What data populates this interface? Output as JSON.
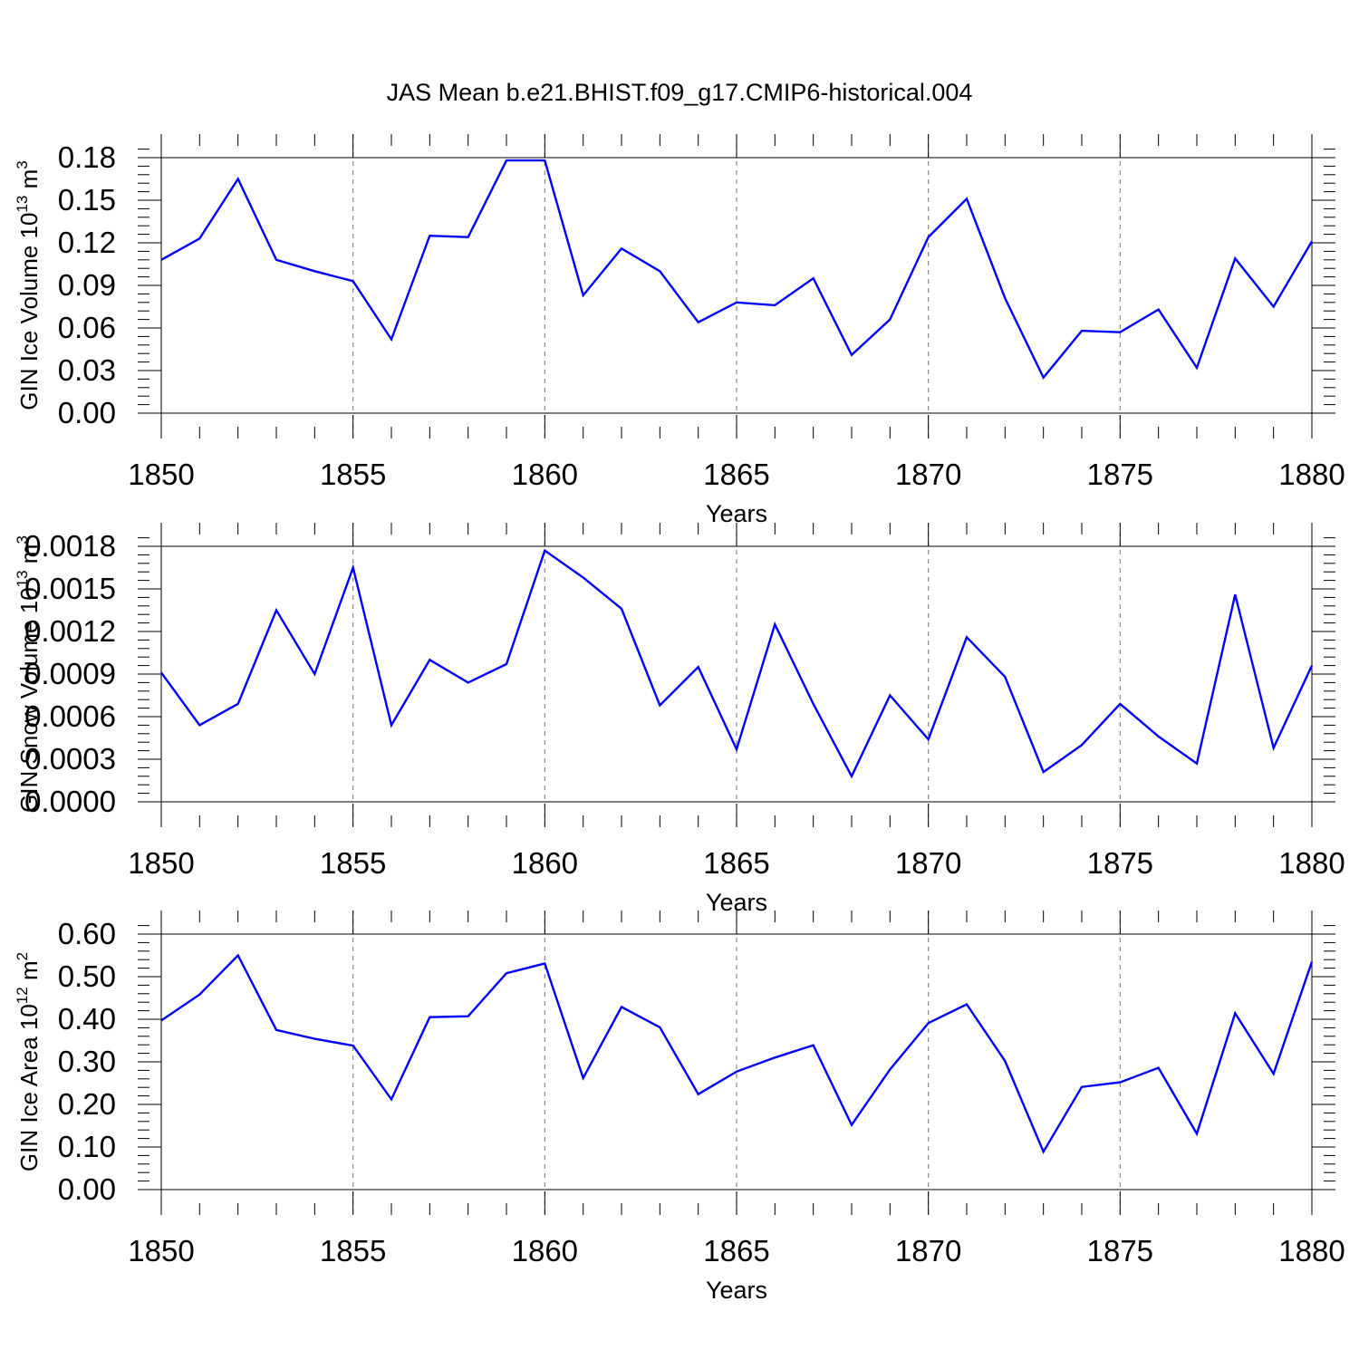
{
  "title": "JAS Mean b.e21.BHIST.f09_g17.CMIP6-historical.004",
  "colors": {
    "series": "#0000ff",
    "axis": "#000000",
    "grid": "#888888"
  },
  "chart_data": [
    {
      "type": "line",
      "ylabel_main": "GIN Ice Volume 10",
      "ylabel_exp": "13",
      "ylabel_unit": " m",
      "ylabel_unit_exp": "3",
      "xlabel": "Years",
      "xlim": [
        1850,
        1880
      ],
      "ylim": [
        0,
        0.18
      ],
      "yticks": [
        "0.00",
        "0.03",
        "0.06",
        "0.09",
        "0.12",
        "0.15",
        "0.18"
      ],
      "xticks": [
        "1850",
        "1855",
        "1860",
        "1865",
        "1870",
        "1875",
        "1880"
      ],
      "grid": "vertical-dashed",
      "x": [
        1850,
        1851,
        1852,
        1853,
        1854,
        1855,
        1856,
        1857,
        1858,
        1859,
        1860,
        1861,
        1862,
        1863,
        1864,
        1865,
        1866,
        1867,
        1868,
        1869,
        1870,
        1871,
        1872,
        1873,
        1874,
        1875,
        1876,
        1877,
        1878,
        1879,
        1880
      ],
      "values": [
        0.108,
        0.123,
        0.165,
        0.108,
        0.1,
        0.093,
        0.052,
        0.125,
        0.124,
        0.178,
        0.178,
        0.083,
        0.116,
        0.1,
        0.064,
        0.078,
        0.076,
        0.095,
        0.041,
        0.066,
        0.124,
        0.151,
        0.081,
        0.025,
        0.058,
        0.057,
        0.073,
        0.032,
        0.109,
        0.075,
        0.121
      ]
    },
    {
      "type": "line",
      "ylabel_main": "GIN Snow Volume 10",
      "ylabel_exp": "13",
      "ylabel_unit": " m",
      "ylabel_unit_exp": "3",
      "xlabel": "Years",
      "xlim": [
        1850,
        1880
      ],
      "ylim": [
        0,
        0.0018
      ],
      "yticks": [
        "0.0000",
        "0.0003",
        "0.0006",
        "0.0009",
        "0.0012",
        "0.0015",
        "0.0018"
      ],
      "xticks": [
        "1850",
        "1855",
        "1860",
        "1865",
        "1870",
        "1875",
        "1880"
      ],
      "grid": "vertical-dashed",
      "x": [
        1850,
        1851,
        1852,
        1853,
        1854,
        1855,
        1856,
        1857,
        1858,
        1859,
        1860,
        1861,
        1862,
        1863,
        1864,
        1865,
        1866,
        1867,
        1868,
        1869,
        1870,
        1871,
        1872,
        1873,
        1874,
        1875,
        1876,
        1877,
        1878,
        1879,
        1880
      ],
      "values": [
        0.00091,
        0.00054,
        0.00069,
        0.00135,
        0.0009,
        0.00165,
        0.00054,
        0.001,
        0.00084,
        0.00097,
        0.00177,
        0.00158,
        0.00136,
        0.00068,
        0.00095,
        0.00037,
        0.00125,
        0.00069,
        0.00018,
        0.00075,
        0.00044,
        0.00116,
        0.00088,
        0.00021,
        0.0004,
        0.00069,
        0.00046,
        0.00027,
        0.00146,
        0.00038,
        0.00096
      ]
    },
    {
      "type": "line",
      "ylabel_main": "GIN Ice Area 10",
      "ylabel_exp": "12",
      "ylabel_unit": " m",
      "ylabel_unit_exp": "2",
      "xlabel": "Years",
      "xlim": [
        1850,
        1880
      ],
      "ylim": [
        0,
        0.6
      ],
      "yticks": [
        "0.00",
        "0.10",
        "0.20",
        "0.30",
        "0.40",
        "0.50",
        "0.60"
      ],
      "xticks": [
        "1850",
        "1855",
        "1860",
        "1865",
        "1870",
        "1875",
        "1880"
      ],
      "grid": "vertical-dashed",
      "x": [
        1850,
        1851,
        1852,
        1853,
        1854,
        1855,
        1856,
        1857,
        1858,
        1859,
        1860,
        1861,
        1862,
        1863,
        1864,
        1865,
        1866,
        1867,
        1868,
        1869,
        1870,
        1871,
        1872,
        1873,
        1874,
        1875,
        1876,
        1877,
        1878,
        1879,
        1880
      ],
      "values": [
        0.397,
        0.458,
        0.55,
        0.375,
        0.354,
        0.338,
        0.212,
        0.405,
        0.407,
        0.508,
        0.531,
        0.262,
        0.429,
        0.381,
        0.224,
        0.277,
        0.31,
        0.339,
        0.152,
        0.282,
        0.391,
        0.435,
        0.302,
        0.089,
        0.241,
        0.252,
        0.286,
        0.131,
        0.414,
        0.272,
        0.535
      ]
    }
  ]
}
